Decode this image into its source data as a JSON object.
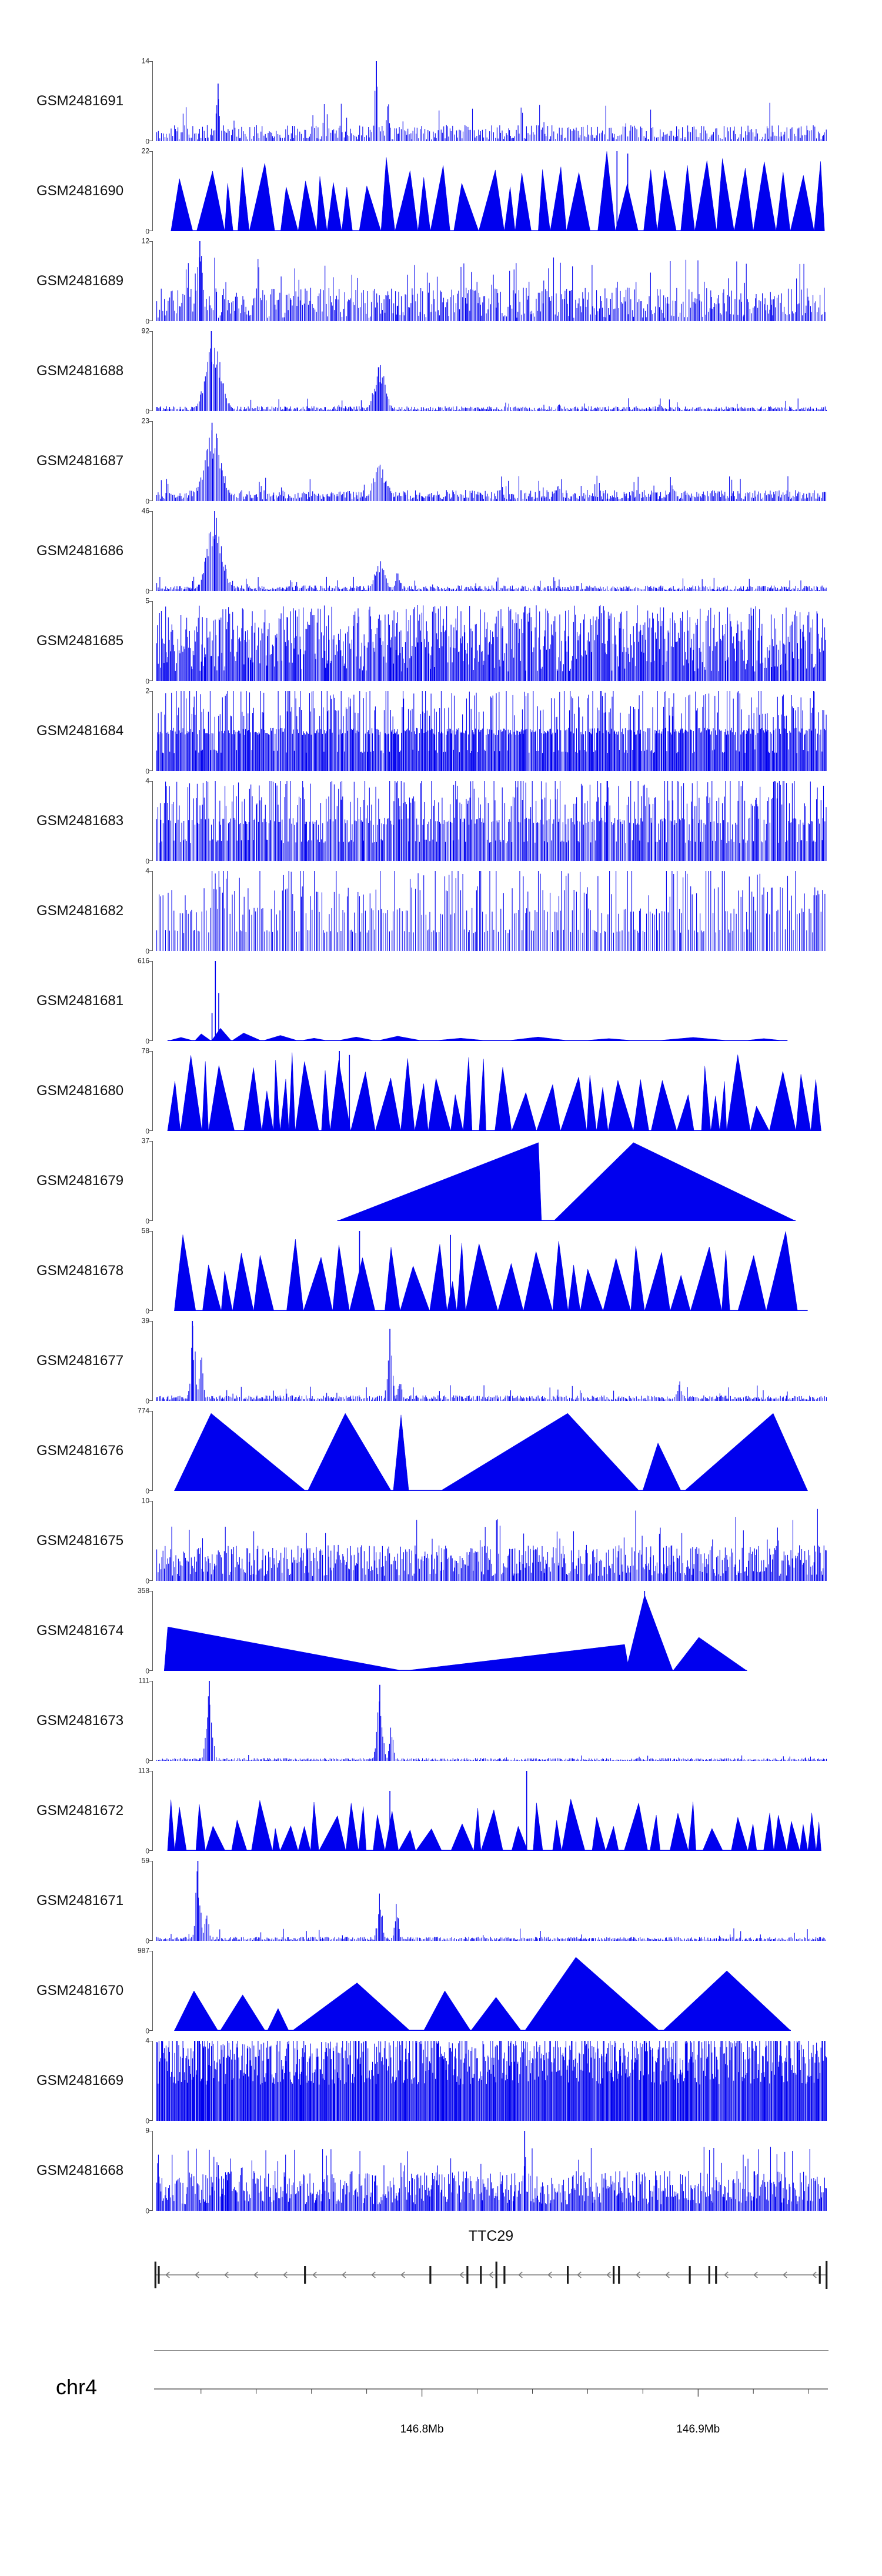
{
  "chart_data": {
    "type": "area",
    "description": "Genome browser read-coverage signal tracks over the TTC29 locus on chr4",
    "signal_color": "#0000EE",
    "y_zero_label": "0",
    "tracks": [
      {
        "label": "GSM2481691",
        "ymax": "14",
        "render": {
          "kind": "spikes",
          "seed": 11,
          "step": [
            1.3,
            3.6
          ],
          "base": [
            0.02,
            0.2
          ],
          "tallProb": 0.05,
          "tall": [
            0.22,
            0.5
          ],
          "peaks": [
            {
              "c": 0.095,
              "w": 0.004,
              "h": 0.7
            },
            {
              "c": 0.33,
              "w": 0.0035,
              "h": 1.0
            },
            {
              "c": 0.347,
              "w": 0.004,
              "h": 0.5
            },
            {
              "c": 0.37,
              "w": 0.003,
              "h": 0.3
            },
            {
              "c": 0.56,
              "w": 0.003,
              "h": 0.25
            }
          ],
          "spikes": [
            {
              "x": 0.33,
              "h": 1.0
            },
            {
              "x": 0.095,
              "h": 0.72
            }
          ]
        }
      },
      {
        "label": "GSM2481690",
        "ymax": "22",
        "render": {
          "kind": "tri-proc",
          "seed": 22,
          "xStart": 0.025,
          "xEnd": 0.995,
          "wRange": [
            0.012,
            0.045
          ],
          "hRange": [
            0.55,
            1.0
          ],
          "gapProb": 0.25,
          "gapRange": [
            0.002,
            0.012
          ],
          "spikes": [
            {
              "x": 0.687,
              "h": 1.0
            },
            {
              "x": 0.703,
              "h": 0.97
            }
          ]
        }
      },
      {
        "label": "GSM2481689",
        "ymax": "12",
        "render": {
          "kind": "spikes",
          "seed": 33,
          "step": [
            1.2,
            3.0
          ],
          "base": [
            0.04,
            0.42
          ],
          "tallProb": 0.07,
          "tall": [
            0.45,
            0.8
          ],
          "peaks": [
            {
              "c": 0.068,
              "w": 0.006,
              "h": 0.95
            }
          ],
          "spikes": [
            {
              "x": 0.068,
              "h": 1.0
            }
          ]
        }
      },
      {
        "label": "GSM2481688",
        "ymax": "92",
        "render": {
          "kind": "spikes",
          "seed": 44,
          "step": [
            1.2,
            2.8
          ],
          "base": [
            0.01,
            0.06
          ],
          "tallProb": 0.03,
          "tall": [
            0.07,
            0.16
          ],
          "peaks": [
            {
              "c": 0.088,
              "w": 0.016,
              "h": 0.97
            },
            {
              "c": 0.335,
              "w": 0.012,
              "h": 0.6
            },
            {
              "c": 0.6,
              "w": 0.004,
              "h": 0.12
            },
            {
              "c": 0.75,
              "w": 0.005,
              "h": 0.1
            }
          ],
          "spikes": [
            {
              "x": 0.085,
              "h": 1.0
            }
          ]
        }
      },
      {
        "label": "GSM2481687",
        "ymax": "23",
        "render": {
          "kind": "spikes",
          "seed": 55,
          "step": [
            1.2,
            2.8
          ],
          "base": [
            0.02,
            0.14
          ],
          "tallProb": 0.06,
          "tall": [
            0.16,
            0.32
          ],
          "peaks": [
            {
              "c": 0.088,
              "w": 0.018,
              "h": 0.92
            },
            {
              "c": 0.335,
              "w": 0.014,
              "h": 0.5
            },
            {
              "c": 0.6,
              "w": 0.006,
              "h": 0.2
            },
            {
              "c": 0.77,
              "w": 0.006,
              "h": 0.22
            }
          ],
          "spikes": [
            {
              "x": 0.086,
              "h": 0.98
            }
          ]
        }
      },
      {
        "label": "GSM2481686",
        "ymax": "46",
        "render": {
          "kind": "spikes",
          "seed": 66,
          "step": [
            1.2,
            2.8
          ],
          "base": [
            0.01,
            0.07
          ],
          "tallProb": 0.04,
          "tall": [
            0.08,
            0.18
          ],
          "peaks": [
            {
              "c": 0.09,
              "w": 0.016,
              "h": 0.97
            },
            {
              "c": 0.335,
              "w": 0.011,
              "h": 0.42
            },
            {
              "c": 0.362,
              "w": 0.005,
              "h": 0.25
            }
          ],
          "spikes": [
            {
              "x": 0.09,
              "h": 1.0
            }
          ]
        }
      },
      {
        "label": "GSM2481685",
        "ymax": "5",
        "render": {
          "kind": "spikes",
          "seed": 77,
          "step": [
            1.0,
            2.2
          ],
          "base": [
            0.12,
            0.95
          ]
        }
      },
      {
        "label": "GSM2481684",
        "ymax": "2",
        "render": {
          "kind": "spikes",
          "seed": 88,
          "step": [
            1.0,
            2.0
          ],
          "quant": [
            0.5,
            0.5,
            0.5,
            0.75,
            1.0,
            0.25
          ]
        }
      },
      {
        "label": "GSM2481683",
        "ymax": "4",
        "render": {
          "kind": "spikes",
          "seed": 99,
          "step": [
            1.1,
            2.6
          ],
          "quant": [
            0.25,
            0.5,
            0.5,
            0.75,
            1.0
          ]
        }
      },
      {
        "label": "GSM2481682",
        "ymax": "4",
        "render": {
          "kind": "spikes",
          "seed": 110,
          "step": [
            1.6,
            4.5
          ],
          "quant": [
            0.25,
            0.25,
            0.5,
            0.5,
            0.75,
            1.0
          ]
        }
      },
      {
        "label": "GSM2481681",
        "ymax": "616",
        "render": {
          "kind": "tri-list",
          "seed": 121,
          "tris": [
            [
              0.02,
              0.06,
              0.5,
              0.045
            ],
            [
              0.06,
              0.085,
              0.4,
              0.09
            ],
            [
              0.085,
              0.115,
              0.45,
              0.16
            ],
            [
              0.115,
              0.16,
              0.4,
              0.1
            ],
            [
              0.16,
              0.215,
              0.5,
              0.07
            ],
            [
              0.215,
              0.26,
              0.5,
              0.035
            ],
            [
              0.27,
              0.33,
              0.5,
              0.05
            ],
            [
              0.33,
              0.4,
              0.45,
              0.06
            ],
            [
              0.41,
              0.5,
              0.5,
              0.035
            ],
            [
              0.52,
              0.62,
              0.5,
              0.05
            ],
            [
              0.63,
              0.72,
              0.5,
              0.03
            ],
            [
              0.74,
              0.86,
              0.5,
              0.045
            ],
            [
              0.87,
              0.94,
              0.5,
              0.03
            ]
          ],
          "spikes": [
            {
              "x": 0.091,
              "h": 1.0
            },
            {
              "x": 0.096,
              "h": 0.6
            },
            {
              "x": 0.086,
              "h": 0.35
            }
          ]
        }
      },
      {
        "label": "GSM2481680",
        "ymax": "78",
        "render": {
          "kind": "tri-proc",
          "seed": 132,
          "xStart": 0.02,
          "xEnd": 0.99,
          "wRange": [
            0.008,
            0.04
          ],
          "hRange": [
            0.3,
            1.0
          ],
          "gapProb": 0.3,
          "gapRange": [
            0.003,
            0.015
          ],
          "spikes": [
            {
              "x": 0.275,
              "h": 1.0
            },
            {
              "x": 0.29,
              "h": 0.95
            }
          ]
        }
      },
      {
        "label": "GSM2481679",
        "ymax": "37",
        "render": {
          "kind": "tri-list",
          "seed": 143,
          "tris": [
            [
              0.272,
              0.575,
              0.985,
              0.98
            ],
            [
              0.593,
              0.952,
              0.33,
              0.98
            ]
          ]
        }
      },
      {
        "label": "GSM2481678",
        "ymax": "58",
        "render": {
          "kind": "tri-proc",
          "seed": 154,
          "xStart": 0.03,
          "xEnd": 0.97,
          "wRange": [
            0.012,
            0.05
          ],
          "hRange": [
            0.35,
            1.0
          ],
          "gapProb": 0.35,
          "gapRange": [
            0.004,
            0.02
          ],
          "spikes": [
            {
              "x": 0.305,
              "h": 1.0
            },
            {
              "x": 0.44,
              "h": 0.95
            }
          ]
        }
      },
      {
        "label": "GSM2481677",
        "ymax": "39",
        "render": {
          "kind": "spikes",
          "seed": 165,
          "step": [
            1.3,
            3.2
          ],
          "base": [
            0.015,
            0.07
          ],
          "tallProb": 0.05,
          "tall": [
            0.08,
            0.2
          ],
          "peaks": [
            {
              "c": 0.058,
              "w": 0.005,
              "h": 0.95
            },
            {
              "c": 0.07,
              "w": 0.004,
              "h": 0.6
            },
            {
              "c": 0.35,
              "w": 0.005,
              "h": 0.85
            },
            {
              "c": 0.365,
              "w": 0.004,
              "h": 0.35
            },
            {
              "c": 0.78,
              "w": 0.005,
              "h": 0.25
            }
          ],
          "spikes": [
            {
              "x": 0.057,
              "h": 1.0
            },
            {
              "x": 0.35,
              "h": 0.9
            }
          ]
        }
      },
      {
        "label": "GSM2481676",
        "ymax": "774",
        "render": {
          "kind": "tri-list",
          "seed": 176,
          "tris": [
            [
              0.03,
              0.225,
              0.28,
              0.97
            ],
            [
              0.228,
              0.352,
              0.45,
              0.97
            ],
            [
              0.355,
              0.378,
              0.5,
              0.95
            ],
            [
              0.425,
              0.72,
              0.64,
              0.97
            ],
            [
              0.725,
              0.782,
              0.4,
              0.6
            ],
            [
              0.787,
              0.97,
              0.72,
              0.97
            ]
          ]
        }
      },
      {
        "label": "GSM2481675",
        "ymax": "10",
        "render": {
          "kind": "spikes",
          "seed": 187,
          "step": [
            1.1,
            2.6
          ],
          "base": [
            0.06,
            0.45
          ],
          "tallProb": 0.06,
          "tall": [
            0.5,
            0.9
          ]
        }
      },
      {
        "label": "GSM2481674",
        "ymax": "358",
        "render": {
          "kind": "tri-list",
          "seed": 198,
          "tris": [
            [
              0.015,
              0.37,
              0.015,
              0.55
            ],
            [
              0.37,
              0.705,
              0.98,
              0.33
            ],
            [
              0.7,
              0.77,
              0.4,
              0.95
            ],
            [
              0.77,
              0.88,
              0.35,
              0.42
            ]
          ],
          "spikes": [
            {
              "x": 0.728,
              "h": 1.0
            }
          ]
        }
      },
      {
        "label": "GSM2481673",
        "ymax": "111",
        "render": {
          "kind": "spikes",
          "seed": 209,
          "step": [
            1.3,
            3.2
          ],
          "base": [
            0.005,
            0.035
          ],
          "tallProb": 0.03,
          "tall": [
            0.04,
            0.1
          ],
          "peaks": [
            {
              "c": 0.082,
              "w": 0.006,
              "h": 0.95
            },
            {
              "c": 0.335,
              "w": 0.006,
              "h": 0.9
            },
            {
              "c": 0.352,
              "w": 0.004,
              "h": 0.5
            }
          ],
          "spikes": [
            {
              "x": 0.082,
              "h": 1.0
            },
            {
              "x": 0.335,
              "h": 0.95
            }
          ]
        }
      },
      {
        "label": "GSM2481672",
        "ymax": "113",
        "render": {
          "kind": "tri-proc",
          "seed": 220,
          "xStart": 0.02,
          "xEnd": 0.99,
          "wRange": [
            0.01,
            0.04
          ],
          "hRange": [
            0.25,
            0.65
          ],
          "gapProb": 0.3,
          "gapRange": [
            0.003,
            0.015
          ],
          "spikes": [
            {
              "x": 0.553,
              "h": 1.0
            },
            {
              "x": 0.35,
              "h": 0.75
            }
          ]
        }
      },
      {
        "label": "GSM2481671",
        "ymax": "59",
        "render": {
          "kind": "spikes",
          "seed": 231,
          "step": [
            1.3,
            3.2
          ],
          "base": [
            0.01,
            0.05
          ],
          "tallProb": 0.04,
          "tall": [
            0.06,
            0.16
          ],
          "peaks": [
            {
              "c": 0.065,
              "w": 0.005,
              "h": 0.95
            },
            {
              "c": 0.078,
              "w": 0.004,
              "h": 0.5
            },
            {
              "c": 0.335,
              "w": 0.005,
              "h": 0.6
            },
            {
              "c": 0.36,
              "w": 0.004,
              "h": 0.5
            }
          ],
          "spikes": [
            {
              "x": 0.065,
              "h": 1.0
            }
          ]
        }
      },
      {
        "label": "GSM2481670",
        "ymax": "987",
        "render": {
          "kind": "tri-list",
          "seed": 242,
          "tris": [
            [
              0.03,
              0.095,
              0.45,
              0.5
            ],
            [
              0.098,
              0.165,
              0.5,
              0.45
            ],
            [
              0.168,
              0.2,
              0.5,
              0.28
            ],
            [
              0.205,
              0.38,
              0.55,
              0.6
            ],
            [
              0.4,
              0.47,
              0.45,
              0.5
            ],
            [
              0.47,
              0.545,
              0.5,
              0.42
            ],
            [
              0.55,
              0.75,
              0.38,
              0.92
            ],
            [
              0.755,
              0.945,
              0.5,
              0.75
            ]
          ]
        }
      },
      {
        "label": "GSM2481669",
        "ymax": "4",
        "render": {
          "kind": "spikes",
          "seed": 253,
          "step": [
            0.9,
            1.8
          ],
          "quant": [
            0.5,
            0.75,
            1.0,
            1.0,
            0.6,
            0.85
          ]
        }
      },
      {
        "label": "GSM2481668",
        "ymax": "9",
        "render": {
          "kind": "spikes",
          "seed": 264,
          "step": [
            1.0,
            2.4
          ],
          "base": [
            0.08,
            0.5
          ],
          "tallProb": 0.06,
          "tall": [
            0.55,
            0.8
          ],
          "peaks": [
            {
              "c": 0.55,
              "w": 0.003,
              "h": 1.0
            },
            {
              "c": 0.13,
              "w": 0.004,
              "h": 0.65
            }
          ],
          "spikes": [
            {
              "x": 0.55,
              "h": 1.0
            }
          ]
        }
      }
    ],
    "gene_track": {
      "title": "TTC29",
      "strand": "reverse",
      "x_start": 0.002,
      "x_end": 0.998,
      "line_color": "#606060",
      "arrow_color": "#787878",
      "exon_color": "#1a1a1a",
      "exons": [
        {
          "x": 0.002,
          "h": 1.5
        },
        {
          "x": 0.007,
          "h": 1.0
        },
        {
          "x": 0.224,
          "h": 1.0
        },
        {
          "x": 0.41,
          "h": 1.0
        },
        {
          "x": 0.465,
          "h": 1.0
        },
        {
          "x": 0.485,
          "h": 1.0
        },
        {
          "x": 0.508,
          "h": 1.5
        },
        {
          "x": 0.52,
          "h": 1.0
        },
        {
          "x": 0.614,
          "h": 1.0
        },
        {
          "x": 0.682,
          "h": 1.0
        },
        {
          "x": 0.69,
          "h": 1.0
        },
        {
          "x": 0.795,
          "h": 1.0
        },
        {
          "x": 0.824,
          "h": 1.0
        },
        {
          "x": 0.834,
          "h": 1.0
        },
        {
          "x": 0.988,
          "h": 1.0
        },
        {
          "x": 0.998,
          "h": 1.6
        }
      ]
    },
    "axis": {
      "chromosome": "chr4",
      "unit": "Mb",
      "from": 146.703,
      "to": 146.947,
      "color": "#3c3c3c",
      "minor_ticks": [
        146.72,
        146.74,
        146.76,
        146.78,
        146.82,
        146.84,
        146.86,
        146.88,
        146.92,
        146.94
      ],
      "major_ticks": [
        {
          "value": 146.8,
          "label": "146.8Mb"
        },
        {
          "value": 146.9,
          "label": "146.9Mb"
        }
      ]
    }
  }
}
